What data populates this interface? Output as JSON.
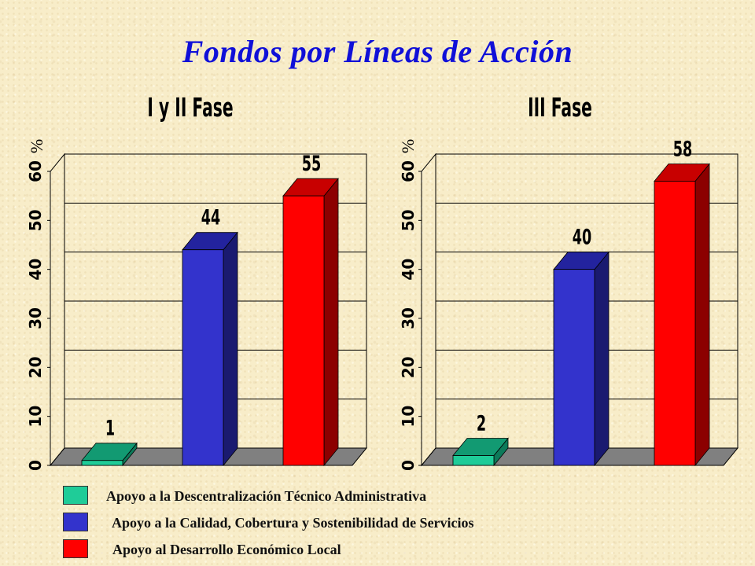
{
  "page": {
    "title": "Fondos por Líneas de Acción",
    "background": "#f8edc9",
    "title_color": "#1010d8"
  },
  "chart_data": [
    {
      "type": "bar",
      "title": "I y II Fase",
      "ylabel": "%",
      "ylim": [
        0,
        60
      ],
      "yticks": [
        0,
        10,
        20,
        30,
        40,
        50,
        60
      ],
      "grid": true,
      "three_d": true,
      "categories": [
        "Apoyo a la Descentralización Técnico Administrativa",
        "Apoyo a la Calidad, Cobertura y Sostenibilidad de Servicios",
        "Apoyo al Desarrollo Económico Local"
      ],
      "values": [
        1,
        44,
        55
      ],
      "data_labels": [
        "1",
        "44",
        "55"
      ]
    },
    {
      "type": "bar",
      "title": "III Fase",
      "ylabel": "%",
      "ylim": [
        0,
        60
      ],
      "yticks": [
        0,
        10,
        20,
        30,
        40,
        50,
        60
      ],
      "grid": true,
      "three_d": true,
      "categories": [
        "Apoyo a la Descentralización Técnico Administrativa",
        "Apoyo a la Calidad, Cobertura y Sostenibilidad de Servicios",
        "Apoyo al Desarrollo Económico Local"
      ],
      "values": [
        2,
        40,
        58
      ],
      "data_labels": [
        "2",
        "40",
        "58"
      ]
    }
  ],
  "legend": {
    "position": "bottom",
    "items": [
      {
        "label": "Apoyo a la Descentralización Técnico Administrativa",
        "color": "#1fcc98"
      },
      {
        "label": "Apoyo a la Calidad, Cobertura y Sostenibilidad de Servicios",
        "color": "#3333cc"
      },
      {
        "label": "Apoyo al Desarrollo Económico Local",
        "color": "#ff0000"
      }
    ]
  },
  "series_colors": [
    {
      "front": "#1fcc98",
      "top": "#129a72",
      "side": "#0d7a5a"
    },
    {
      "front": "#3333cc",
      "top": "#23239e",
      "side": "#1a1a70"
    },
    {
      "front": "#ff0000",
      "top": "#c80000",
      "side": "#8c0000"
    }
  ]
}
